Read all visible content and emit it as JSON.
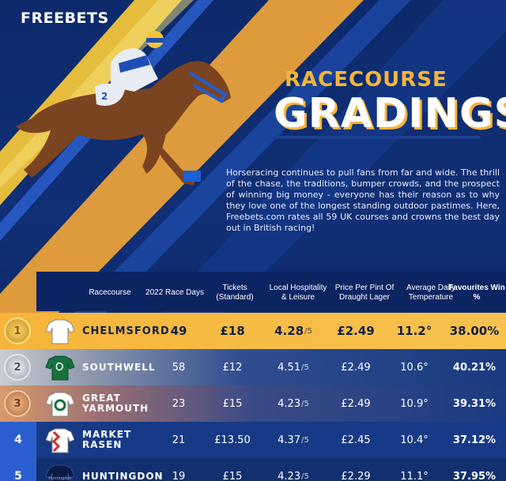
{
  "brand": {
    "logo": "FREEBETS"
  },
  "header": {
    "title_line1": "RACECOURSE",
    "title_line2": "GRADINGS",
    "intro": "Horseracing continues to pull fans from far and wide. The thrill of the chase, the traditions, bumper crowds, and the prospect of winning big money - everyone has their reason as to why they love one of the longest standing outdoor pastimes. Here, Freebets.com rates all 59 UK courses and crowns the best day out in British racing!"
  },
  "colors": {
    "navy": "#0d2a6b",
    "gold": "#f6b53a",
    "silver": "#c9ccd2",
    "bronze": "#d99a6c",
    "blue_rank": "#2b5fcf"
  },
  "table": {
    "columns": {
      "racecourse": "Racecourse",
      "race_days": "2022 Race Days",
      "tickets": "Tickets (Standard)",
      "hospitality": "Local Hospitality & Leisure",
      "pint": "Price Per Pint Of Draught Lager",
      "temperature": "Average Daily Temperature",
      "favourites": "Favourites Win %"
    },
    "rows": [
      {
        "rank": "1",
        "medal": "gold",
        "silk": "white-silk-icon",
        "name": "CHELMSFORD",
        "days": "49",
        "ticket": "£18",
        "hosp": "4.28",
        "hosp_suffix": "/5",
        "pint": "£2.49",
        "temp": "11.2°",
        "fav": "38.00%"
      },
      {
        "rank": "2",
        "medal": "silver",
        "silk": "green-silk-icon",
        "name": "SOUTHWELL",
        "days": "58",
        "ticket": "£12",
        "hosp": "4.51",
        "hosp_suffix": "/5",
        "pint": "£2.49",
        "temp": "10.6°",
        "fav": "40.21%"
      },
      {
        "rank": "3",
        "medal": "bronze",
        "silk": "white-green-silk-icon",
        "name": "GREAT YARMOUTH",
        "days": "23",
        "ticket": "£15",
        "hosp": "4.23",
        "hosp_suffix": "/5",
        "pint": "£2.49",
        "temp": "10.9°",
        "fav": "39.31%"
      },
      {
        "rank": "4",
        "medal": "none",
        "silk": "red-white-silk-icon",
        "name": "MARKET RASEN",
        "days": "21",
        "ticket": "£13.50",
        "hosp": "4.37",
        "hosp_suffix": "/5",
        "pint": "£2.45",
        "temp": "10.4°",
        "fav": "37.12%"
      },
      {
        "rank": "5",
        "medal": "none",
        "silk": "navy-silk-icon",
        "silk_text": "Huntingdon",
        "name": "HUNTINGDON",
        "days": "19",
        "ticket": "£15",
        "hosp": "4.23",
        "hosp_suffix": "/5",
        "pint": "£2.29",
        "temp": "11.1°",
        "fav": "37.95%"
      }
    ]
  }
}
